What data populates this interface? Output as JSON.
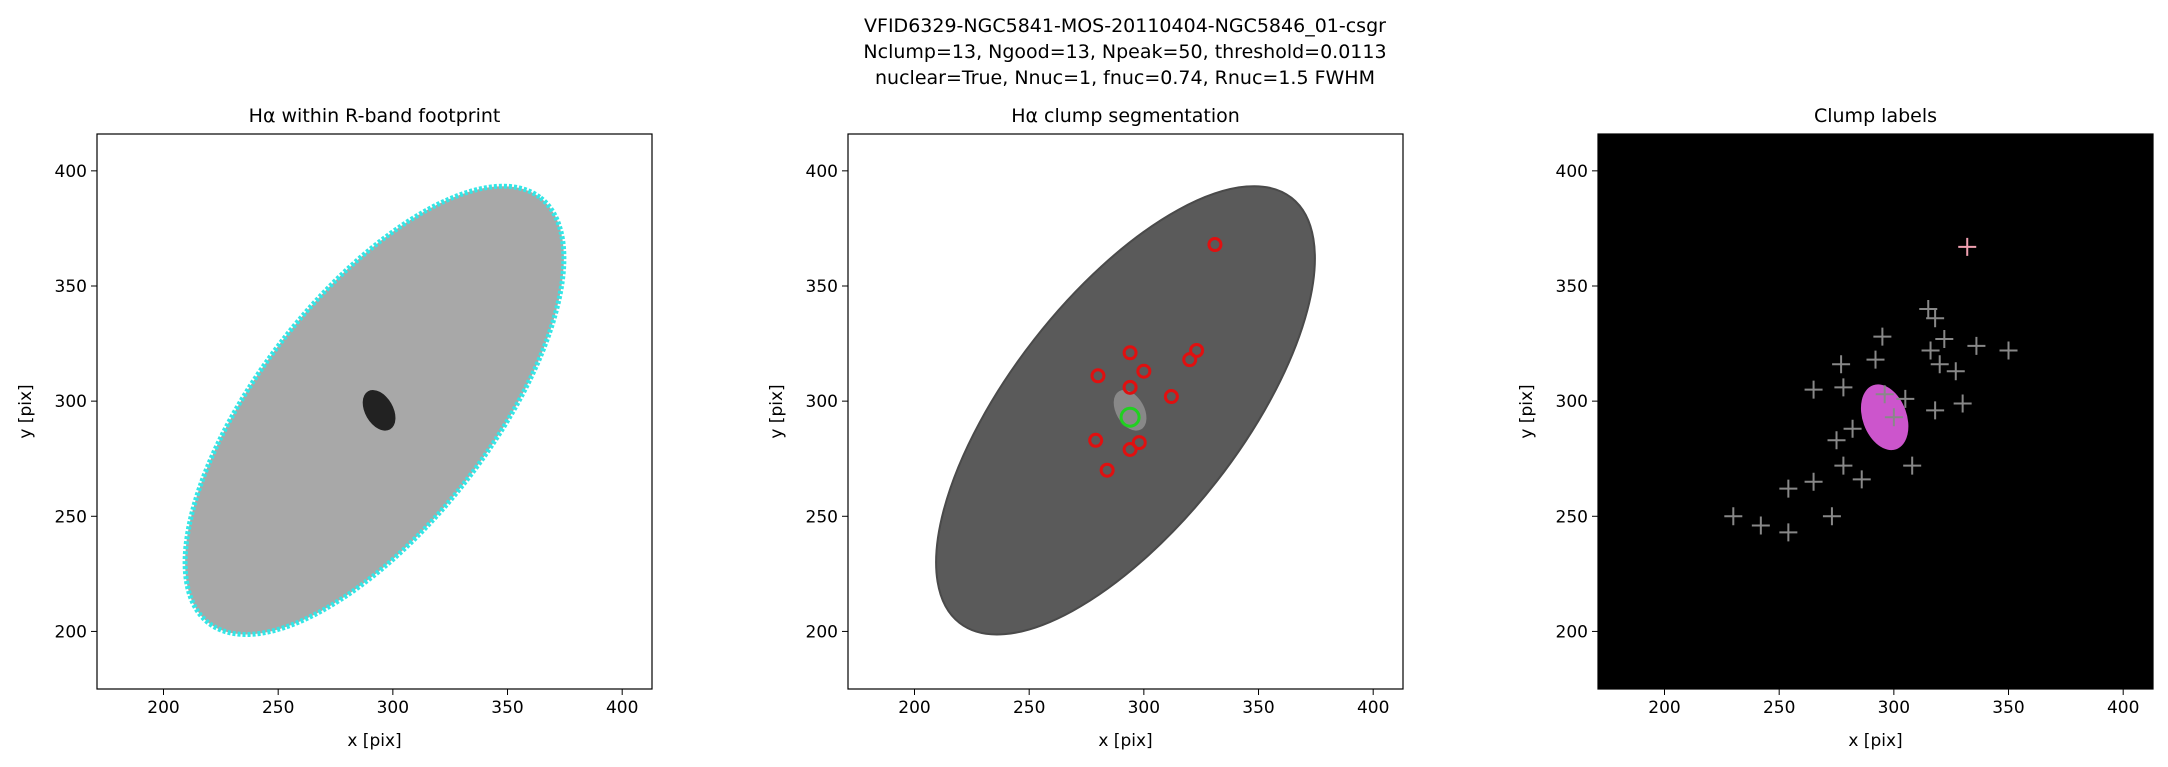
{
  "title_lines": [
    "VFID6329-NGC5841-MOS-20110404-NGC5846_01-csgr",
    "Nclump=13, Ngood=13, Npeak=50, threshold=0.0113",
    "nuclear=True, Nnuc=1, fnuc=0.74, Rnuc=1.5 FWHM"
  ],
  "chart_data": [
    {
      "type": "image",
      "title": "Hα within R-band footprint",
      "xlabel": "x [pix]",
      "ylabel": "y [pix]",
      "xlim": [
        171,
        413
      ],
      "ylim": [
        175,
        416
      ],
      "xticks": [
        200,
        250,
        300,
        350,
        400
      ],
      "yticks": [
        200,
        250,
        300,
        350,
        400
      ],
      "background": "#ffffff",
      "color": "#a8a8a8",
      "edge_color": "#33e6e6"
    },
    {
      "type": "image",
      "title": "Hα clump segmentation",
      "xlabel": "x [pix]",
      "ylabel": "y [pix]",
      "xlim": [
        171,
        413
      ],
      "ylim": [
        175,
        416
      ],
      "xticks": [
        200,
        250,
        300,
        350,
        400
      ],
      "yticks": [
        200,
        250,
        300,
        350,
        400
      ],
      "background": "#ffffff",
      "color": "#5a5a5a",
      "edge_color": "#4a4a4a",
      "series": [
        {
          "name": "clumps",
          "color": "#e01010",
          "x": [
            294,
            280,
            300,
            294,
            312,
            320,
            323,
            279,
            298,
            294,
            284,
            331
          ],
          "y": [
            321,
            311,
            313,
            306,
            302,
            318,
            322,
            283,
            282,
            279,
            270,
            368
          ]
        },
        {
          "name": "nucleus",
          "color": "#20d020",
          "x": [
            294
          ],
          "y": [
            293
          ]
        }
      ]
    },
    {
      "type": "image",
      "title": "Clump labels",
      "xlabel": "x [pix]",
      "ylabel": "y [pix]",
      "xlim": [
        171,
        413
      ],
      "ylim": [
        175,
        416
      ],
      "xticks": [
        200,
        250,
        300,
        350,
        400
      ],
      "yticks": [
        200,
        250,
        300,
        350,
        400
      ],
      "background": "#000000",
      "color": "#cc55cc",
      "edge_color": "#000000",
      "series": [
        {
          "name": "peaks",
          "color": "#888888",
          "x": [
            230,
            242,
            254,
            254,
            265,
            273,
            265,
            277,
            278,
            292,
            295,
            315,
            318,
            322,
            316,
            320,
            327,
            336,
            350,
            330,
            318,
            308,
            286,
            278,
            275,
            282,
            300,
            296,
            305
          ],
          "y": [
            250,
            246,
            243,
            262,
            265,
            250,
            305,
            316,
            306,
            318,
            328,
            340,
            336,
            327,
            322,
            316,
            313,
            324,
            322,
            299,
            296,
            272,
            266,
            272,
            283,
            288,
            293,
            303,
            301
          ]
        },
        {
          "name": "isolated",
          "color": "#f0a0b0",
          "x": [
            332
          ],
          "y": [
            367
          ]
        }
      ]
    }
  ]
}
